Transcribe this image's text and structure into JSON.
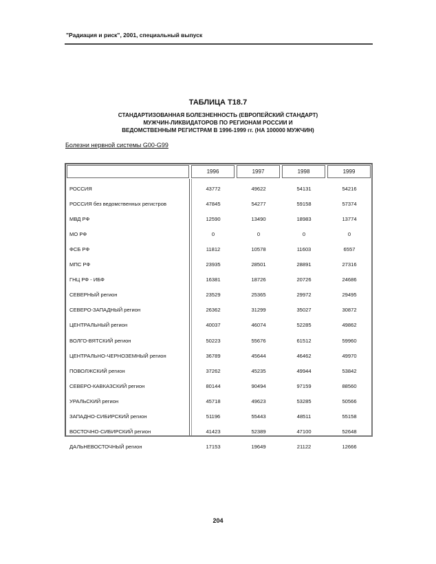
{
  "running_header": "\"Радиация и риск\", 2001, специальный выпуск",
  "table_title": "ТАБЛИЦА Т18.7",
  "subtitle_lines": [
    "СТАНДАРТИЗОВАННАЯ БОЛЕЗНЕННОСТЬ (ЕВРОПЕЙСКИЙ СТАНДАРТ)",
    "МУЖЧИН-ЛИКВИДАТОРОВ ПО РЕГИОНАМ РОССИИ И",
    "ВЕДОМСТВЕННЫМ РЕГИСТРАМ В 1996-1999 гг. (НА 100000 МУЖЧИН)"
  ],
  "section_label": "Болезни нервной системы G00-G99",
  "columns": [
    "1996",
    "1997",
    "1998",
    "1999"
  ],
  "rows": [
    {
      "label": "РОССИЯ",
      "values": [
        "43772",
        "49622",
        "54131",
        "54216"
      ]
    },
    {
      "label": "РОССИЯ без ведомственных регистров",
      "values": [
        "47845",
        "54277",
        "59158",
        "57374"
      ]
    },
    {
      "label": "МВД РФ",
      "values": [
        "12590",
        "13490",
        "18983",
        "13774"
      ]
    },
    {
      "label": "МО РФ",
      "values": [
        "0",
        "0",
        "0",
        "0"
      ]
    },
    {
      "label": "ФСБ РФ",
      "values": [
        "11812",
        "10578",
        "11603",
        "6557"
      ]
    },
    {
      "label": "МПС РФ",
      "values": [
        "23935",
        "28501",
        "28891",
        "27316"
      ]
    },
    {
      "label": "ГНЦ РФ - ИБФ",
      "values": [
        "16381",
        "18726",
        "20726",
        "24686"
      ]
    },
    {
      "label": "СЕВЕРНЫЙ регион",
      "values": [
        "23529",
        "25365",
        "29972",
        "29495"
      ]
    },
    {
      "label": "СЕВЕРО-ЗАПАДНЫЙ регион",
      "values": [
        "26362",
        "31299",
        "35027",
        "30872"
      ]
    },
    {
      "label": "ЦЕНТРАЛЬНЫЙ регион",
      "values": [
        "40037",
        "46074",
        "52285",
        "49862"
      ]
    },
    {
      "label": "ВОЛГО-ВЯТСКИЙ регион",
      "values": [
        "50223",
        "55676",
        "61512",
        "59960"
      ]
    },
    {
      "label": "ЦЕНТРАЛЬНО-ЧЕРНОЗЕМНЫЙ регион",
      "values": [
        "36789",
        "45644",
        "46462",
        "49970"
      ]
    },
    {
      "label": "ПОВОЛЖСКИЙ регион",
      "values": [
        "37262",
        "45235",
        "49944",
        "53842"
      ]
    },
    {
      "label": "СЕВЕРО-КАВКАЗСКИЙ регион",
      "values": [
        "80144",
        "90494",
        "97159",
        "88560"
      ]
    },
    {
      "label": "УРАЛЬСКИЙ регион",
      "values": [
        "45718",
        "49623",
        "53285",
        "50566"
      ]
    },
    {
      "label": "ЗАПАДНО-СИБИРСКИЙ регион",
      "values": [
        "51196",
        "55443",
        "48511",
        "55158"
      ]
    },
    {
      "label": "ВОСТОЧНО-СИБИРСКИЙ регион",
      "values": [
        "41423",
        "52389",
        "47100",
        "52648"
      ]
    },
    {
      "label": "ДАЛЬНЕВОСТОЧНЫЙ регион",
      "values": [
        "17153",
        "19649",
        "21122",
        "12666"
      ]
    }
  ],
  "page_number": "204"
}
